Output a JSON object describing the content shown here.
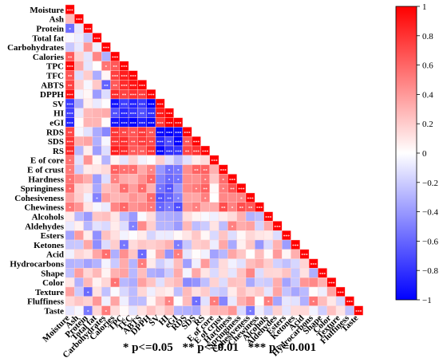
{
  "chart_data": {
    "type": "heatmap",
    "title": "",
    "variables": [
      "Moisture",
      "Ash",
      "Protein",
      "Total fat",
      "Carbohydrates",
      "Calories",
      "TPC",
      "TFC",
      "ABTS",
      "DPPH",
      "SV",
      "HI",
      "eGI",
      "RDS",
      "SDS",
      "RS",
      "E of core",
      "E of crust",
      "Hardness",
      "Springiness",
      "Cohesiveness",
      "Chewiness",
      "Alcohols",
      "Aldehydes",
      "Esters",
      "Ketones",
      "Acid",
      "Hydrocarbons",
      "Shape",
      "Color",
      "Texture",
      "Fluffiness",
      "Taste"
    ],
    "colorbar": {
      "range": [
        -1,
        1
      ],
      "ticks": [
        "1",
        "0.8",
        "0.6",
        "0.4",
        "0.2",
        "0",
        "−0.2",
        "−0.4",
        "−0.6",
        "−0.8",
        "−1"
      ],
      "colors": {
        "negative": "#0000ff",
        "zero": "#ffffff",
        "positive": "#ff0000"
      }
    },
    "legend_notes": [
      "* p<=0.05",
      "** p<=0.01",
      "*** p<=0.001"
    ]
  }
}
